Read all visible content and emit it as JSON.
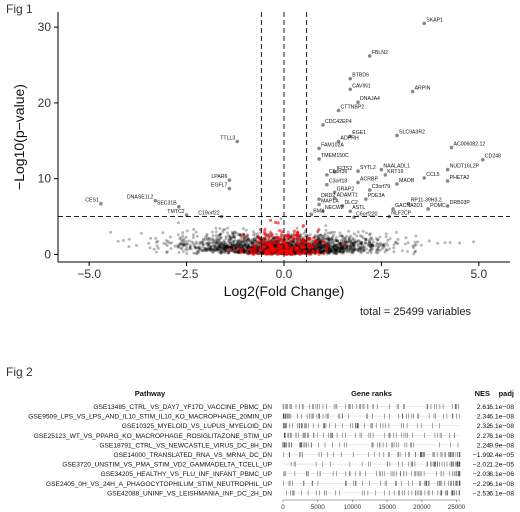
{
  "figures": {
    "fig1_label": "Fig 1",
    "fig2_label": "Fig 2",
    "total_text": "total = 25499 variables"
  },
  "chart_data": [
    {
      "type": "scatter",
      "title": "",
      "xlabel": "Log2(Fold Change)",
      "ylabel": "−Log10(p−value)",
      "xlim": [
        -5.8,
        5.8
      ],
      "ylim": [
        -1,
        32
      ],
      "x_ticks": [
        -5.0,
        -2.5,
        0.0,
        2.5,
        5.0
      ],
      "x_tick_labels": [
        "−5.0",
        "−2.5",
        "0.0",
        "2.5",
        "5.0"
      ],
      "y_ticks": [
        0,
        10,
        20,
        30
      ],
      "y_tick_labels": [
        "0",
        "10",
        "20",
        "30"
      ],
      "thresholds": {
        "fold_change_lines_x": [
          -0.58,
          0.58
        ],
        "center_line_x": 0,
        "pvalue_line_y": 5
      },
      "colors": {
        "background_points": "#000000",
        "significant_points": "#ff0000",
        "threshold_lines": "#000000"
      },
      "labeled_genes": [
        {
          "label": "SKAP1",
          "x": 3.6,
          "y": 30.5
        },
        {
          "label": "FBLN2",
          "x": 2.2,
          "y": 26.2
        },
        {
          "label": "BTBD6",
          "x": 1.7,
          "y": 23.2
        },
        {
          "label": "CAVIN1",
          "x": 1.7,
          "y": 21.8
        },
        {
          "label": "ARPIN",
          "x": 3.3,
          "y": 21.5
        },
        {
          "label": "DNAJA4",
          "x": 1.9,
          "y": 20.1
        },
        {
          "label": "CTTNBP2",
          "x": 1.4,
          "y": 19.0
        },
        {
          "label": "CDC42EP4",
          "x": 1.0,
          "y": 17.1
        },
        {
          "label": "SLC9A3R2",
          "x": 2.9,
          "y": 15.7
        },
        {
          "label": "EGE1",
          "x": 1.7,
          "y": 15.6
        },
        {
          "label": "TTLL3",
          "x": -1.2,
          "y": 14.9
        },
        {
          "label": "ADPRH",
          "x": 1.4,
          "y": 14.9
        },
        {
          "label": "AC006082.12",
          "x": 4.3,
          "y": 14.1
        },
        {
          "label": "FAM102A",
          "x": 0.9,
          "y": 14.0
        },
        {
          "label": "TMEM150C",
          "x": 0.9,
          "y": 12.6
        },
        {
          "label": "CD248",
          "x": 5.1,
          "y": 12.5
        },
        {
          "label": "NAALADL1",
          "x": 2.5,
          "y": 11.2
        },
        {
          "label": "NUDT16L2P",
          "x": 4.2,
          "y": 11.2
        },
        {
          "label": "SYTL2",
          "x": 1.9,
          "y": 11.0
        },
        {
          "label": "IFITS2",
          "x": 1.3,
          "y": 10.9
        },
        {
          "label": "KRT19",
          "x": 2.6,
          "y": 10.5
        },
        {
          "label": "C6orf36",
          "x": 1.1,
          "y": 10.5
        },
        {
          "label": "CCL5",
          "x": 3.6,
          "y": 10.1
        },
        {
          "label": "PHETA2",
          "x": 4.2,
          "y": 9.7
        },
        {
          "label": "LPAR6",
          "x": -1.4,
          "y": 9.8
        },
        {
          "label": "ACRBP",
          "x": 1.9,
          "y": 9.5
        },
        {
          "label": "MAOB",
          "x": 2.9,
          "y": 9.3
        },
        {
          "label": "C3orf18",
          "x": 1.1,
          "y": 9.2
        },
        {
          "label": "C3orf79",
          "x": 2.2,
          "y": 8.5
        },
        {
          "label": "EGFL7",
          "x": -1.4,
          "y": 8.7
        },
        {
          "label": "GRAP2",
          "x": 1.3,
          "y": 8.2
        },
        {
          "label": "CES1",
          "x": -4.7,
          "y": 6.7
        },
        {
          "label": "DNASE1L2",
          "x": -3.3,
          "y": 7.1
        },
        {
          "label": "DRD2",
          "x": 0.9,
          "y": 7.3
        },
        {
          "label": "ADAMT1",
          "x": 1.3,
          "y": 7.4
        },
        {
          "label": "PDE3A",
          "x": 2.1,
          "y": 7.3
        },
        {
          "label": "RP11-39H3.2",
          "x": 3.2,
          "y": 6.7
        },
        {
          "label": "DRB03P",
          "x": 4.2,
          "y": 6.4
        },
        {
          "label": "MAP1A",
          "x": 0.9,
          "y": 6.6
        },
        {
          "label": "DLC2",
          "x": 1.5,
          "y": 6.4
        },
        {
          "label": "GACNA2D1",
          "x": 2.8,
          "y": 6.0
        },
        {
          "label": "POMC",
          "x": 3.7,
          "y": 6.0
        },
        {
          "label": "SEC31B",
          "x": -2.7,
          "y": 6.3
        },
        {
          "label": "NECW2",
          "x": 1.0,
          "y": 5.7
        },
        {
          "label": "ASTL",
          "x": 1.7,
          "y": 5.7
        },
        {
          "label": "BMX",
          "x": 0.7,
          "y": 5.3
        },
        {
          "label": "TMTC2",
          "x": -2.5,
          "y": 5.2
        },
        {
          "label": "C19orf22",
          "x": -1.6,
          "y": 5.0
        },
        {
          "label": "C6orf220",
          "x": 1.8,
          "y": 4.9
        },
        {
          "label": "NLF2CP",
          "x": 2.7,
          "y": 5.0
        }
      ]
    },
    {
      "type": "table",
      "columns": [
        "Pathway",
        "Gene ranks",
        "NES",
        "padj"
      ],
      "rank_axis_ticks": [
        0,
        5000,
        10000,
        15000,
        20000,
        25000
      ],
      "rank_axis_tick_labels": [
        "0",
        "5000",
        "10000",
        "15000",
        "20000",
        "25000"
      ],
      "rank_xlim": [
        0,
        25499
      ],
      "rows": [
        {
          "pathway": "GSE13485_CTRL_VS_DAY7_YF17D_VACCINE_PBMC_DN",
          "nes": "2.61",
          "padj": "6.1e−08",
          "direction": "up"
        },
        {
          "pathway": "GSE9509_LPS_VS_LPS_AND_IL10_STIM_IL10_KO_MACROPHAGE_20MIN_UP",
          "nes": "2.34",
          "padj": "6.1e−08",
          "direction": "up"
        },
        {
          "pathway": "GSE10325_MYELOID_VS_LUPUS_MYELOID_DN",
          "nes": "2.32",
          "padj": "6.1e−08",
          "direction": "up"
        },
        {
          "pathway": "GSE25123_WT_VS_PPARG_KO_MACROPHAGE_ROSIGLITAZONE_STIM_UP",
          "nes": "2.27",
          "padj": "6.1e−08",
          "direction": "up"
        },
        {
          "pathway": "GSE18791_CTRL_VS_NEWCASTLE_VIRUS_DC_8H_DN",
          "nes": "2.24",
          "padj": "9.9e−08",
          "direction": "up"
        },
        {
          "pathway": "GSE14000_TRANSLATED_RNA_VS_MRNA_DC_DN",
          "nes": "−1.99",
          "padj": "2.4e−05",
          "direction": "down"
        },
        {
          "pathway": "GSE3720_UNSTIM_VS_PMA_STIM_VD2_GAMMADELTA_TCELL_UP",
          "nes": "−2.02",
          "padj": "1.2e−05",
          "direction": "down"
        },
        {
          "pathway": "GSE34205_HEALTHY_VS_FLU_INF_INFANT_PBMC_UP",
          "nes": "−2.03",
          "padj": "6.1e−06",
          "direction": "down"
        },
        {
          "pathway": "GSE2405_0H_VS_24H_A_PHAGOCYTOPHILUM_STIM_NEUTROPHIL_UP",
          "nes": "−2.29",
          "padj": "6.1e−08",
          "direction": "down"
        },
        {
          "pathway": "GSE42088_UNINF_VS_LEISHMANIA_INF_DC_2H_DN",
          "nes": "−2.53",
          "padj": "6.1e−08",
          "direction": "down"
        }
      ]
    }
  ]
}
